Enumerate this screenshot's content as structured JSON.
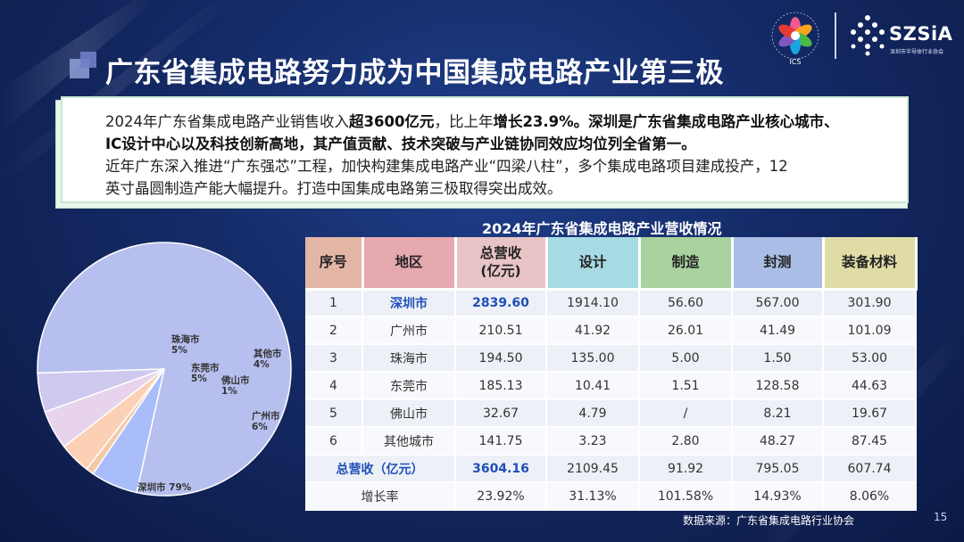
{
  "title": "广东省集成电路努力成为中国集成电路产业第三极",
  "logos": {
    "ics": "ICS",
    "szsia_brand": "SZSiA",
    "szsia_sub": "深圳市半导体行业协会"
  },
  "intro": {
    "p1_a": "2024年广东省集成电路产业销售收入",
    "p1_b": "超3600亿元",
    "p1_c": "，比上年",
    "p1_d": "增长23.9%。深圳是广东省集成电路产业核心城市、",
    "p2": "IC设计中心以及科技创新高地，其产值贡献、技术突破与产业链协同效应均位列全省第一。",
    "p3": "近年广东深入推进“广东强芯”工程，加快构建集成电路产业“四梁八柱”，多个集成电路项目建成投产，12",
    "p4": "英寸晶圆制造产能大幅提升。打造中国集成电路第三极取得突出成效。"
  },
  "table": {
    "caption": "2024年广东省集成电路产业营收情况",
    "headers": [
      {
        "label": "序号",
        "color": "#e4b6a6"
      },
      {
        "label": "地区",
        "color": "#e6a9b0"
      },
      {
        "label": "总营收\n(亿元)",
        "color": "#e9c4c7"
      },
      {
        "label": "设计",
        "color": "#a7dbe3"
      },
      {
        "label": "制造",
        "color": "#a9d29e"
      },
      {
        "label": "封测",
        "color": "#a9bde6"
      },
      {
        "label": "装备材料",
        "color": "#e0dca6"
      }
    ],
    "rows": [
      {
        "no": "1",
        "region": "深圳市",
        "total": "2839.60",
        "design": "1914.10",
        "mfg": "56.60",
        "pkg": "567.00",
        "equip": "301.90"
      },
      {
        "no": "2",
        "region": "广州市",
        "total": "210.51",
        "design": "41.92",
        "mfg": "26.01",
        "pkg": "41.49",
        "equip": "101.09"
      },
      {
        "no": "3",
        "region": "珠海市",
        "total": "194.50",
        "design": "135.00",
        "mfg": "5.00",
        "pkg": "1.50",
        "equip": "53.00"
      },
      {
        "no": "4",
        "region": "东莞市",
        "total": "185.13",
        "design": "10.41",
        "mfg": "1.51",
        "pkg": "128.58",
        "equip": "44.63"
      },
      {
        "no": "5",
        "region": "佛山市",
        "total": "32.67",
        "design": "4.79",
        "mfg": "/",
        "pkg": "8.21",
        "equip": "19.67"
      },
      {
        "no": "6",
        "region": "其他城市",
        "total": "141.75",
        "design": "3.23",
        "mfg": "2.80",
        "pkg": "48.27",
        "equip": "87.45"
      }
    ],
    "total_row": {
      "label": "总营收（亿元）",
      "total": "3604.16",
      "design": "2109.45",
      "mfg": "91.92",
      "pkg": "795.05",
      "equip": "607.74"
    },
    "growth_row": {
      "label": "增长率",
      "total": "23.92%",
      "design": "31.13%",
      "mfg": "101.58%",
      "pkg": "14.93%",
      "equip": "8.06%"
    }
  },
  "source": "数据来源：广东省集成电路行业协会",
  "page_number": "15",
  "chart_data": {
    "type": "pie",
    "title": "",
    "slices": [
      {
        "name": "深圳市",
        "label": "深圳市 79%",
        "value": 79,
        "color": "#b7bfee"
      },
      {
        "name": "广州市",
        "label": "广州市\n6%",
        "value": 6,
        "color": "#a9bdfa"
      },
      {
        "name": "佛山市",
        "label": "佛山市\n1%",
        "value": 1,
        "color": "#f5c9a6"
      },
      {
        "name": "其他城市",
        "label": "其他市\n4%",
        "value": 4,
        "color": "#fbd0b4"
      },
      {
        "name": "东莞市",
        "label": "东莞市\n5%",
        "value": 5,
        "color": "#e8d3ec"
      },
      {
        "name": "珠海市",
        "label": "珠海市\n5%",
        "value": 5,
        "color": "#cfc8ef"
      }
    ]
  }
}
